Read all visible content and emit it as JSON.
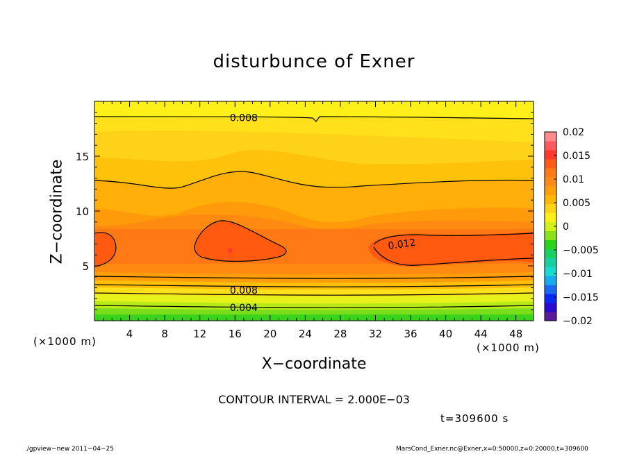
{
  "page": {
    "title": "disturbunce of Exner",
    "xlabel": "X−coordinate",
    "ylabel": "Z−coordinate",
    "x_unit_left": "(×1000 m)",
    "x_unit_right": "(×1000 m)",
    "contour_interval": "CONTOUR INTERVAL = 2.000E−03",
    "time_label": "t=309600 s",
    "footer_left": "./gpview−new   2011−04−25",
    "footer_right": "MarsCond_Exner.nc@Exner,x=0:50000,z=0:20000,t=309600"
  },
  "chart_data": {
    "type": "heatmap",
    "title": "disturbunce of Exner",
    "xlabel": "X-coordinate",
    "ylabel": "Z-coordinate",
    "xlim": [
      0,
      50
    ],
    "ylim": [
      0,
      20
    ],
    "x_ticks": [
      4,
      8,
      12,
      16,
      20,
      24,
      28,
      32,
      36,
      40,
      44,
      48
    ],
    "y_ticks": [
      5,
      10,
      15
    ],
    "contour_interval": 0.002,
    "contour_labels": [
      {
        "text": "0.008",
        "x": 17,
        "y": 18.5
      },
      {
        "text": "0.012",
        "x": 35,
        "y": 7.0
      },
      {
        "text": "0.008",
        "x": 17,
        "y": 2.8
      },
      {
        "text": "0.004",
        "x": 17,
        "y": 1.2
      }
    ],
    "colorbar": {
      "ticks": [
        "0.02",
        "0.015",
        "0.01",
        "0.005",
        "0",
        "−0.005",
        "−0.01",
        "−0.015",
        "−0.02"
      ],
      "range": [
        -0.02,
        0.02
      ],
      "colors": [
        "#5a1a9a",
        "#2a0ad0",
        "#0a2af0",
        "#1a6af0",
        "#1aaaf0",
        "#1adad0",
        "#1ad0a0",
        "#1ad060",
        "#2ad21a",
        "#8ae21a",
        "#d2f21a",
        "#fff01a",
        "#ffd21a",
        "#ffb80a",
        "#ffa00a",
        "#ff8a1a",
        "#ff7a1a",
        "#ff5a1a",
        "#ff3a2a",
        "#ff5a5a",
        "#ff8a8a"
      ]
    },
    "colors": {
      "fill_high": "#ff5a10",
      "fill_mid": "#ffa00a",
      "fill_low": "#fff01a",
      "fill_ground": "#2ad21a"
    }
  }
}
